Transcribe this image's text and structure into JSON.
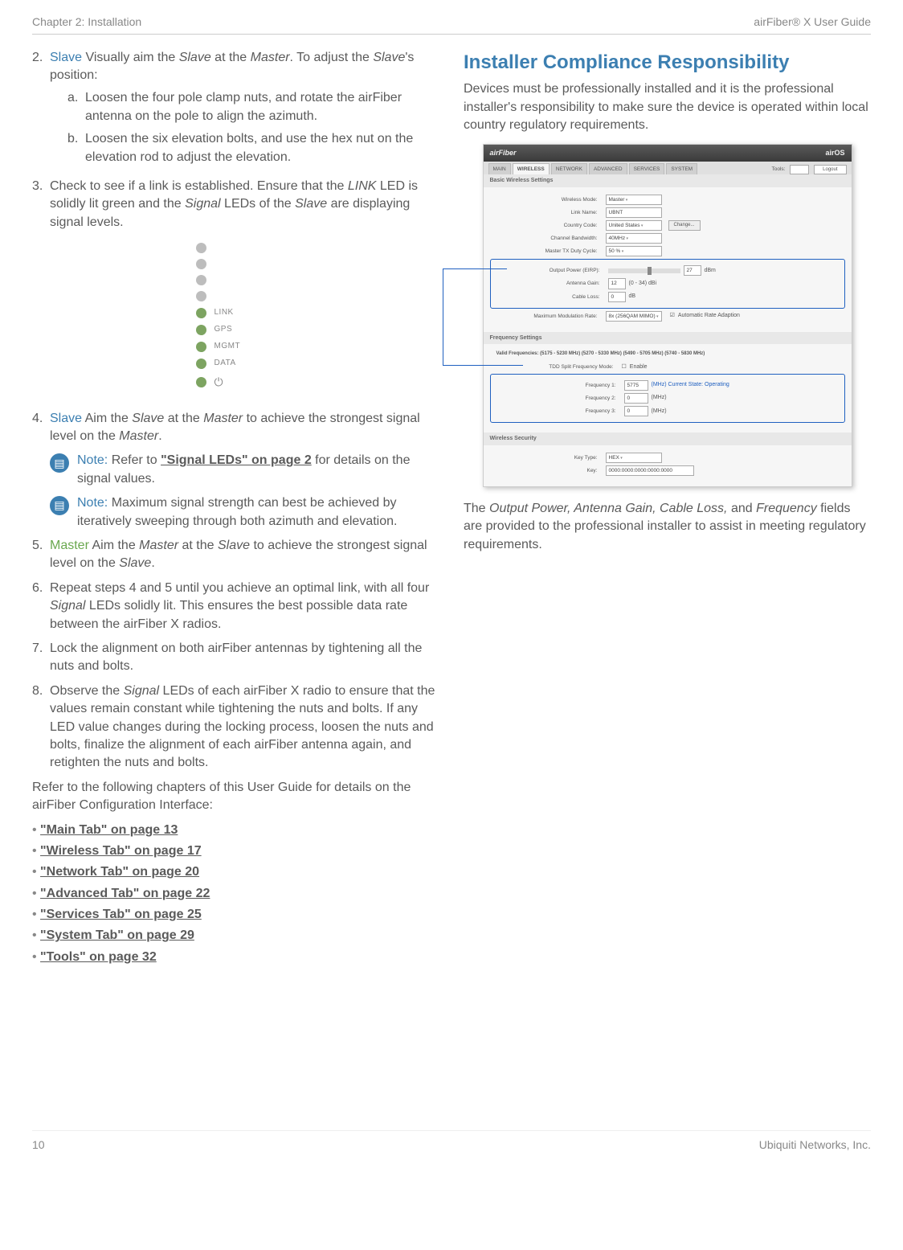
{
  "header": {
    "left": "Chapter 2: Installation",
    "right": "airFiber® X User Guide"
  },
  "left": {
    "step2": {
      "num": "2.",
      "label": "Slave",
      "lead": "  Visually aim the ",
      "slave_i": "Slave",
      "mid": " at the ",
      "master_i": "Master",
      "tail1": ". To adjust the ",
      "slave_i2": "Slave",
      "tail2": "'s position:",
      "a": {
        "num": "a.",
        "text": "Loosen the four pole clamp nuts, and rotate the airFiber antenna on the pole to align the azimuth."
      },
      "b": {
        "num": "b.",
        "text": "Loosen the six elevation bolts, and use the hex nut on the elevation rod to adjust the elevation."
      }
    },
    "step3": {
      "num": "3.",
      "p1": "Check to see if a link is established. Ensure that the ",
      "link_i": "LINK",
      "p2": " LED is solidly lit green and the ",
      "sig_i": "Signal",
      "p3": " LEDs of the ",
      "slave_i": "Slave",
      "p4": " are displaying signal levels."
    },
    "leds": [
      {
        "color": "#bdbdbd",
        "label": ""
      },
      {
        "color": "#bdbdbd",
        "label": ""
      },
      {
        "color": "#bdbdbd",
        "label": ""
      },
      {
        "color": "#bdbdbd",
        "label": ""
      },
      {
        "color": "#7da461",
        "label": "LINK"
      },
      {
        "color": "#7da461",
        "label": "GPS"
      },
      {
        "color": "#7da461",
        "label": "MGMT"
      },
      {
        "color": "#7da461",
        "label": "DATA"
      },
      {
        "color": "#7da461",
        "label": "⏻",
        "power": true
      }
    ],
    "step4": {
      "num": "4.",
      "label": "Slave",
      "p1": "  Aim the ",
      "slave_i": "Slave",
      "p2": " at the ",
      "master_i": "Master",
      "p3": " to achieve the strongest signal level on the ",
      "master_i2": "Master",
      "p4": "."
    },
    "note1": {
      "label": "Note:",
      "p1": " Refer to ",
      "link": "\"Signal LEDs\" on page 2",
      "p2": " for details on the signal values."
    },
    "note2": {
      "label": "Note:",
      "text": " Maximum signal strength can best be achieved by iteratively sweeping through both azimuth and elevation."
    },
    "step5": {
      "num": "5.",
      "label": "Master",
      "p1": "  Aim the ",
      "master_i": "Master",
      "p2": " at the ",
      "slave_i": "Slave",
      "p3": " to achieve the strongest signal level on the ",
      "slave_i2": "Slave",
      "p4": "."
    },
    "step6": {
      "num": "6.",
      "p1": "Repeat steps 4 and 5 until you achieve an optimal link, with all four ",
      "sig_i": "Signal",
      "p2": " LEDs solidly lit. This ensures the best possible data rate between the airFiber X radios."
    },
    "step7": {
      "num": "7.",
      "text": "Lock the alignment on both airFiber antennas by tightening all the nuts and bolts."
    },
    "step8": {
      "num": "8.",
      "p1": "Observe the ",
      "sig_i": "Signal",
      "p2": " LEDs of each airFiber X radio to ensure that the values remain constant while tightening the nuts and bolts. If any LED value changes during the locking process, loosen the nuts and bolts, finalize the alignment of each airFiber antenna again, and retighten the nuts and bolts."
    },
    "refer": "Refer to the following chapters of this User Guide for details on the airFiber Configuration Interface:",
    "links": [
      "\"Main Tab\" on page 13",
      "\"Wireless Tab\" on page 17",
      "\"Network Tab\" on page 20",
      "\"Advanced Tab\" on page 22",
      "\"Services Tab\" on page 25",
      "\"System Tab\" on page 29",
      "\"Tools\" on page 32"
    ]
  },
  "right": {
    "heading": "Installer Compliance Responsibility",
    "intro": "Devices must be professionally installed and it is the professional installer's responsibility to make sure the device is operated within local country regulatory requirements.",
    "shot": {
      "logo": "airFiber",
      "airos": "airOS",
      "tabs": [
        "MAIN",
        "WIRELESS",
        "NETWORK",
        "ADVANCED",
        "SERVICES",
        "SYSTEM"
      ],
      "tools": "Tools:",
      "logout": "Logout",
      "sec1": "Basic Wireless Settings",
      "rows1": [
        {
          "lab": "Wireless Mode:",
          "val": "Master",
          "sel": true
        },
        {
          "lab": "Link Name:",
          "val": "UBNT"
        },
        {
          "lab": "Country Code:",
          "val": "United States",
          "sel": true,
          "btn": "Change..."
        },
        {
          "lab": "Channel Bandwidth:",
          "val": "40MHz",
          "sel": true
        },
        {
          "lab": "Master TX Duty Cycle:",
          "val": "50 %",
          "sel": true
        }
      ],
      "output": {
        "lab": "Output Power (EIRP):",
        "val": "27",
        "unit": "dBm"
      },
      "gain": {
        "lab": "Antenna Gain:",
        "val": "12",
        "range": "(0 - 34) dBi"
      },
      "loss": {
        "lab": "Cable Loss:",
        "val": "0",
        "unit": "dB"
      },
      "mod": {
        "lab": "Maximum Modulation Rate:",
        "val": "8x (256QAM MIMO)",
        "chk": "Automatic Rate Adaption"
      },
      "sec2": "Frequency Settings",
      "valid": "Valid Frequencies: (5175 - 5230 MHz) (5270 - 5330 MHz) (5490 - 5705 MHz) (5740 - 5830 MHz)",
      "tdd": {
        "lab": "TDD Split Frequency Mode:",
        "chk": "Enable"
      },
      "f1": {
        "lab": "Frequency 1:",
        "val": "5775",
        "unit": "(MHz) Current State: Operating"
      },
      "f2": {
        "lab": "Frequency 2:",
        "val": "0",
        "unit": "(MHz)"
      },
      "f3": {
        "lab": "Frequency 3:",
        "val": "0",
        "unit": "(MHz)"
      },
      "sec3": "Wireless Security",
      "kt": {
        "lab": "Key Type:",
        "val": "HEX"
      },
      "key": {
        "lab": "Key:",
        "val": "0000:0000:0000:0000:0000"
      }
    },
    "caption": {
      "p1": "The ",
      "fields_i": "Output Power, Antenna Gain, Cable Loss,",
      "p2": " and ",
      "freq_i": "Frequency",
      "p3": " fields are provided to the professional installer to assist in meeting regulatory requirements."
    }
  },
  "footer": {
    "page": "10",
    "company": "Ubiquiti Networks, Inc."
  }
}
